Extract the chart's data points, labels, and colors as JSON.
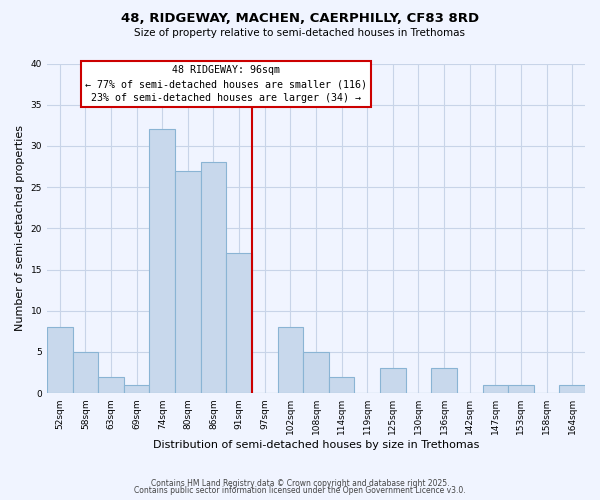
{
  "title": "48, RIDGEWAY, MACHEN, CAERPHILLY, CF83 8RD",
  "subtitle": "Size of property relative to semi-detached houses in Trethomas",
  "xlabel": "Distribution of semi-detached houses by size in Trethomas",
  "ylabel": "Number of semi-detached properties",
  "bin_labels": [
    "52sqm",
    "58sqm",
    "63sqm",
    "69sqm",
    "74sqm",
    "80sqm",
    "86sqm",
    "91sqm",
    "97sqm",
    "102sqm",
    "108sqm",
    "114sqm",
    "119sqm",
    "125sqm",
    "130sqm",
    "136sqm",
    "142sqm",
    "147sqm",
    "153sqm",
    "158sqm",
    "164sqm"
  ],
  "counts": [
    8,
    5,
    2,
    1,
    32,
    27,
    28,
    17,
    0,
    8,
    5,
    2,
    0,
    3,
    0,
    3,
    0,
    1,
    1,
    0,
    1
  ],
  "bar_color": "#c8d8ec",
  "bar_edge_color": "#8ab4d4",
  "marker_bin": 8,
  "marker_color": "#cc0000",
  "annotation_title": "48 RIDGEWAY: 96sqm",
  "annotation_line1": "← 77% of semi-detached houses are smaller (116)",
  "annotation_line2": "23% of semi-detached houses are larger (34) →",
  "ylim": [
    0,
    40
  ],
  "yticks": [
    0,
    5,
    10,
    15,
    20,
    25,
    30,
    35,
    40
  ],
  "footer1": "Contains HM Land Registry data © Crown copyright and database right 2025.",
  "footer2": "Contains public sector information licensed under the Open Government Licence v3.0.",
  "bg_color": "#f0f4ff",
  "grid_color": "#c8d4e8"
}
